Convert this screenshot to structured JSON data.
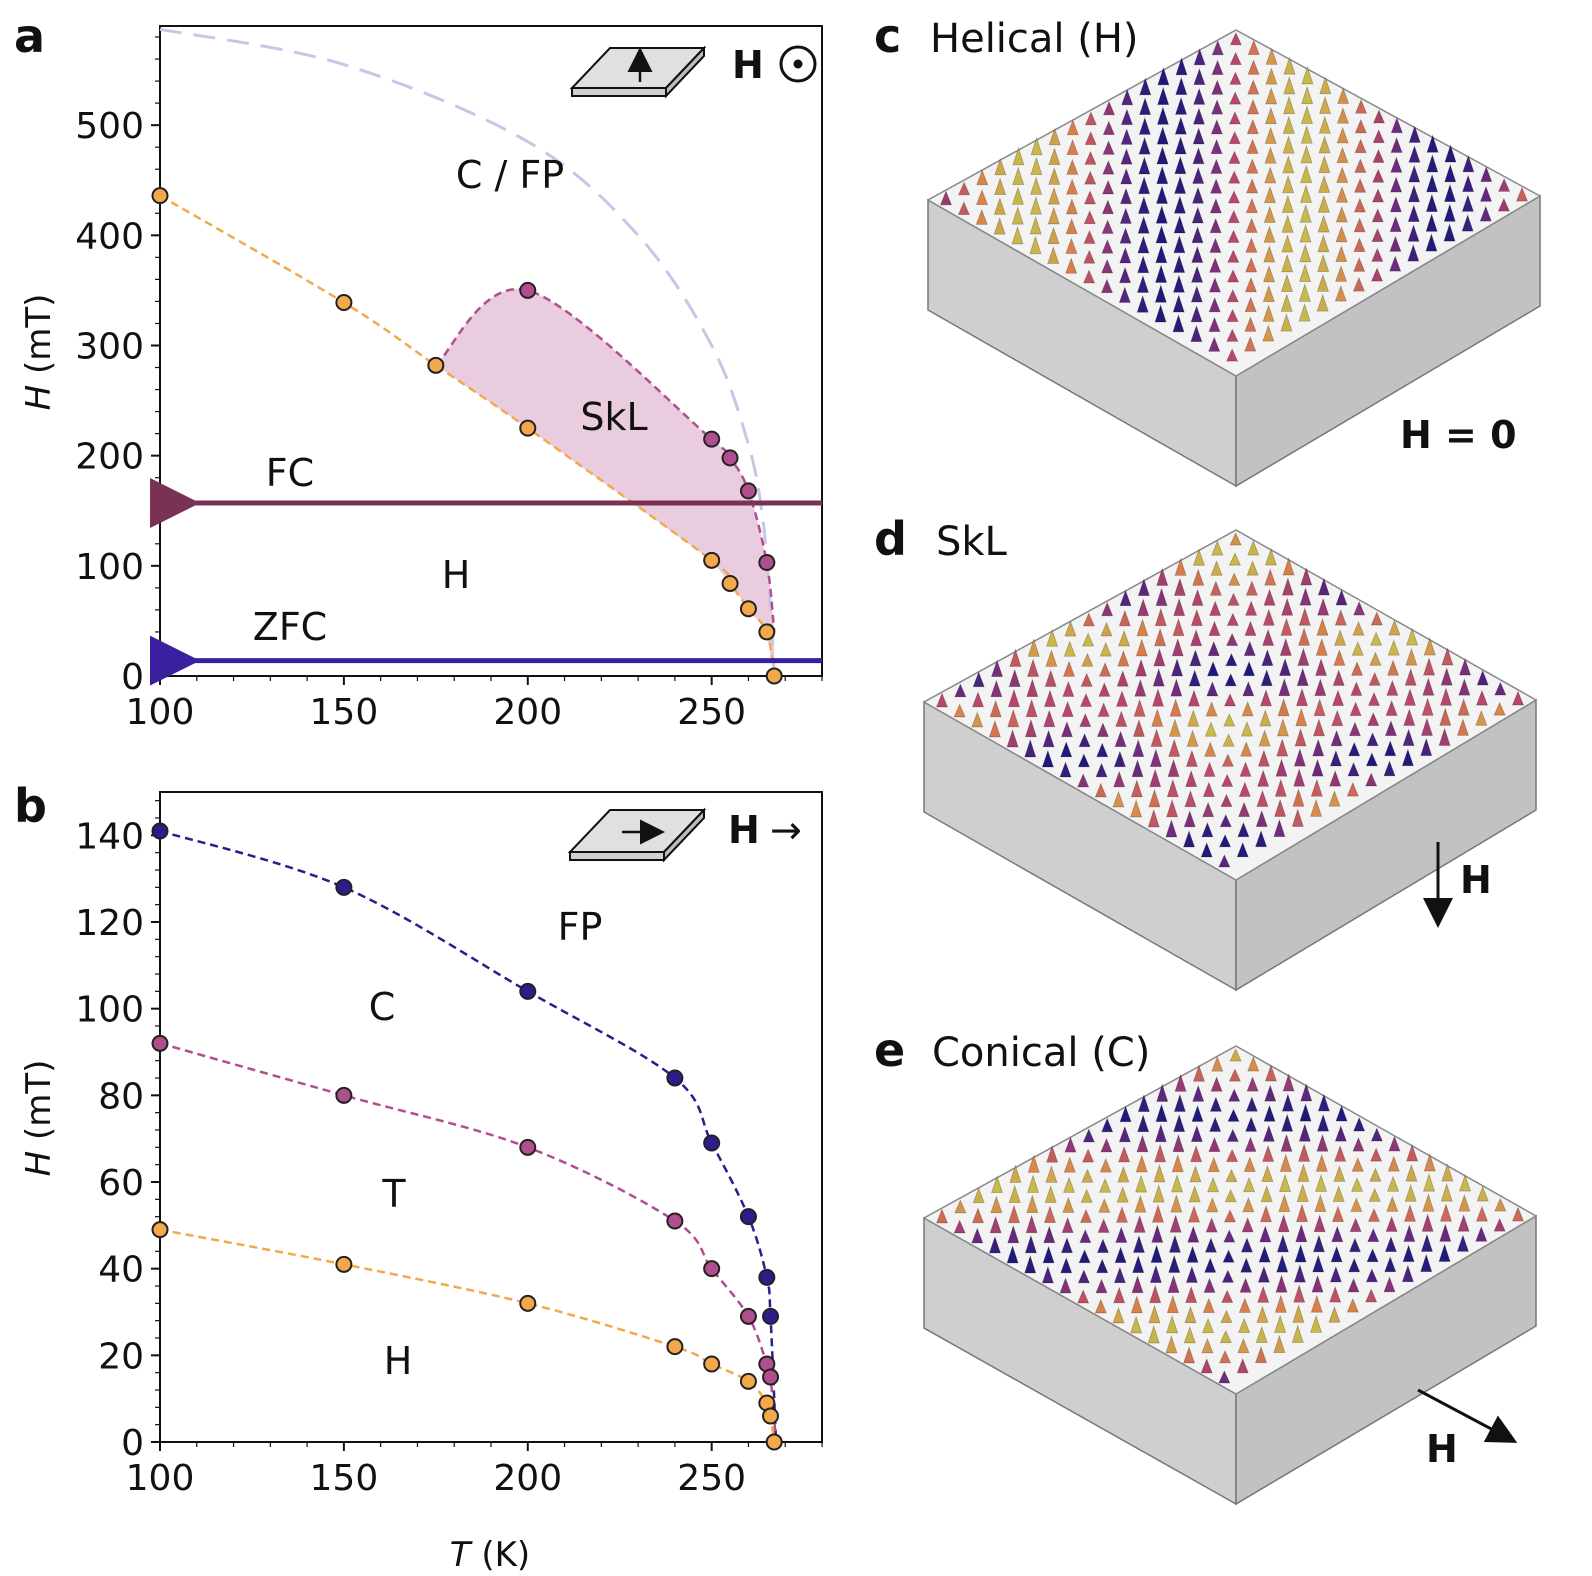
{
  "colors": {
    "orange": "#f2a84b",
    "magenta": "#b04f8e",
    "navy": "#2b1d8c",
    "skl_fill": "#e8c6dc",
    "fc_arrow": "#7b3153",
    "zfc_arrow": "#3a1f9f",
    "fp_dash": "#c9c5e6",
    "box_side": "#c9c9c9",
    "box_top": "#f4f4f4"
  },
  "panels": {
    "a": {
      "letter": "a",
      "field_label": "H",
      "field_symbol": "⊙",
      "region_labels": {
        "cfp": "C / FP",
        "skl": "SkL",
        "h": "H",
        "fc": "FC",
        "zfc": "ZFC"
      }
    },
    "b": {
      "letter": "b",
      "field_label": "H",
      "field_symbol": "→",
      "region_labels": {
        "fp": "FP",
        "c": "C",
        "t": "T",
        "h": "H"
      }
    },
    "c": {
      "letter": "c",
      "title": "Helical (H)",
      "field_note": "H = 0"
    },
    "d": {
      "letter": "d",
      "title": "SkL",
      "field_note": "H"
    },
    "e": {
      "letter": "e",
      "title": "Conical (C)",
      "field_note": "H"
    }
  },
  "chart_data": [
    {
      "id": "a",
      "type": "scatter",
      "xlabel": "T (K)",
      "ylabel": "H (mT)",
      "xlim": [
        100,
        280
      ],
      "ylim": [
        0,
        590
      ],
      "xticks": [
        100,
        150,
        200,
        250
      ],
      "yticks": [
        0,
        100,
        200,
        300,
        400,
        500
      ],
      "series": [
        {
          "name": "H boundary (orange)",
          "color": "#f2a84b",
          "points": [
            [
              100,
              436
            ],
            [
              150,
              339
            ],
            [
              175,
              282
            ],
            [
              200,
              225
            ],
            [
              250,
              105
            ],
            [
              255,
              84
            ],
            [
              260,
              61
            ],
            [
              265,
              40
            ],
            [
              267,
              0
            ]
          ]
        },
        {
          "name": "SkL upper (magenta)",
          "color": "#b04f8e",
          "points": [
            [
              200,
              350
            ],
            [
              250,
              215
            ],
            [
              255,
              198
            ],
            [
              260,
              168
            ],
            [
              265,
              103
            ]
          ]
        },
        {
          "name": "C/FP boundary (guide)",
          "color": "#c9c5e6",
          "curve": [
            [
              100,
              587
            ],
            [
              150,
              555
            ],
            [
              200,
              485
            ],
            [
              230,
              400
            ],
            [
              250,
              300
            ],
            [
              260,
              210
            ],
            [
              264,
              140
            ],
            [
              266,
              60
            ],
            [
              267,
              0
            ]
          ]
        }
      ],
      "fc_line_H": 157,
      "zfc_line_H": 14
    },
    {
      "id": "b",
      "type": "scatter",
      "xlabel": "T (K)",
      "ylabel": "H (mT)",
      "xlim": [
        100,
        280
      ],
      "ylim": [
        0,
        150
      ],
      "xticks": [
        100,
        150,
        200,
        250
      ],
      "yticks": [
        0,
        20,
        40,
        60,
        80,
        100,
        120,
        140
      ],
      "series": [
        {
          "name": "FP boundary",
          "color": "#2b1d8c",
          "points": [
            [
              100,
              141
            ],
            [
              150,
              128
            ],
            [
              200,
              104
            ],
            [
              240,
              84
            ],
            [
              250,
              69
            ],
            [
              260,
              52
            ],
            [
              265,
              38
            ],
            [
              266,
              29
            ]
          ]
        },
        {
          "name": "C–T boundary",
          "color": "#b04f8e",
          "points": [
            [
              100,
              92
            ],
            [
              150,
              80
            ],
            [
              200,
              68
            ],
            [
              240,
              51
            ],
            [
              250,
              40
            ],
            [
              260,
              29
            ],
            [
              265,
              18
            ],
            [
              266,
              15
            ]
          ]
        },
        {
          "name": "T–H boundary",
          "color": "#f2a84b",
          "points": [
            [
              100,
              49
            ],
            [
              150,
              41
            ],
            [
              200,
              32
            ],
            [
              240,
              22
            ],
            [
              250,
              18
            ],
            [
              260,
              14
            ],
            [
              265,
              9
            ],
            [
              266,
              6
            ],
            [
              267,
              0
            ]
          ]
        }
      ]
    }
  ]
}
